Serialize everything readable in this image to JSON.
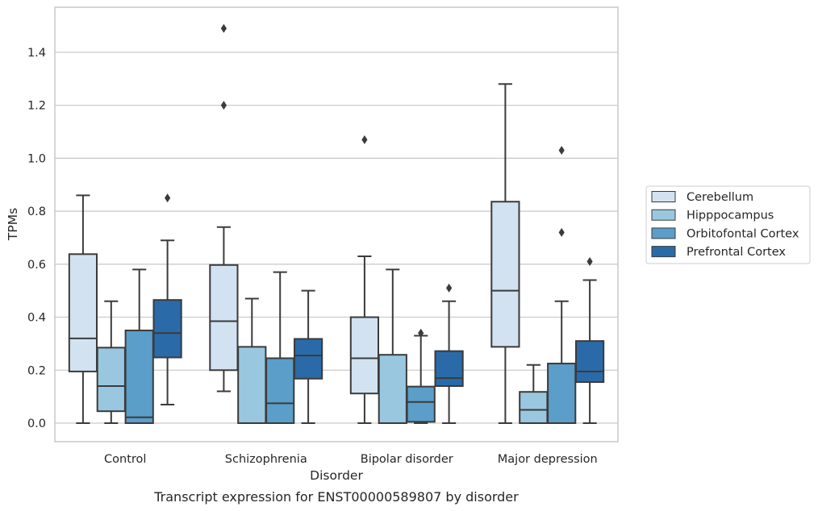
{
  "caption": "Transcript expression for ENST00000589807 by disorder",
  "chart_data": {
    "type": "boxplot",
    "xlabel": "Disorder",
    "ylabel": "TPMs",
    "ylim": [
      -0.07,
      1.57
    ],
    "yticks": [
      "0.0",
      "0.2",
      "0.4",
      "0.6",
      "0.8",
      "1.0",
      "1.2",
      "1.4"
    ],
    "grid": "horizontal",
    "legend_position": "right",
    "categories": [
      "Control",
      "Schizophrenia",
      "Bipolar disorder",
      "Major depression"
    ],
    "series": [
      {
        "name": "Cerebellum",
        "color": "#d2e2f1",
        "boxes": [
          {
            "whislo": 0.0,
            "q1": 0.195,
            "med": 0.32,
            "q3": 0.638,
            "whishi": 0.86,
            "fliers": []
          },
          {
            "whislo": 0.12,
            "q1": 0.2,
            "med": 0.385,
            "q3": 0.597,
            "whishi": 0.74,
            "fliers": [
              1.2,
              1.49
            ]
          },
          {
            "whislo": 0.0,
            "q1": 0.112,
            "med": 0.245,
            "q3": 0.4,
            "whishi": 0.63,
            "fliers": [
              1.07
            ]
          },
          {
            "whislo": 0.0,
            "q1": 0.288,
            "med": 0.5,
            "q3": 0.836,
            "whishi": 1.28,
            "fliers": []
          }
        ]
      },
      {
        "name": "Hipppocampus",
        "color": "#9ac7e0",
        "boxes": [
          {
            "whislo": 0.0,
            "q1": 0.045,
            "med": 0.14,
            "q3": 0.285,
            "whishi": 0.46,
            "fliers": []
          },
          {
            "whislo": 0.0,
            "q1": 0.0,
            "med": 0.0,
            "q3": 0.288,
            "whishi": 0.47,
            "fliers": []
          },
          {
            "whislo": 0.0,
            "q1": 0.0,
            "med": 0.0,
            "q3": 0.258,
            "whishi": 0.58,
            "fliers": []
          },
          {
            "whislo": 0.0,
            "q1": 0.0,
            "med": 0.05,
            "q3": 0.118,
            "whishi": 0.22,
            "fliers": []
          }
        ]
      },
      {
        "name": "Orbitofontal Cortex",
        "color": "#5b9ec9",
        "boxes": [
          {
            "whislo": 0.0,
            "q1": 0.0,
            "med": 0.022,
            "q3": 0.35,
            "whishi": 0.58,
            "fliers": []
          },
          {
            "whislo": 0.0,
            "q1": 0.0,
            "med": 0.075,
            "q3": 0.245,
            "whishi": 0.57,
            "fliers": []
          },
          {
            "whislo": 0.0,
            "q1": 0.005,
            "med": 0.08,
            "q3": 0.138,
            "whishi": 0.33,
            "fliers": [
              0.34
            ]
          },
          {
            "whislo": 0.0,
            "q1": 0.0,
            "med": 0.0,
            "q3": 0.225,
            "whishi": 0.46,
            "fliers": [
              0.72,
              1.03
            ]
          }
        ]
      },
      {
        "name": "Prefrontal Cortex",
        "color": "#2a6aa8",
        "boxes": [
          {
            "whislo": 0.07,
            "q1": 0.248,
            "med": 0.34,
            "q3": 0.465,
            "whishi": 0.69,
            "fliers": [
              0.85
            ]
          },
          {
            "whislo": 0.0,
            "q1": 0.168,
            "med": 0.255,
            "q3": 0.318,
            "whishi": 0.5,
            "fliers": []
          },
          {
            "whislo": 0.0,
            "q1": 0.14,
            "med": 0.17,
            "q3": 0.272,
            "whishi": 0.46,
            "fliers": [
              0.51
            ]
          },
          {
            "whislo": 0.0,
            "q1": 0.155,
            "med": 0.195,
            "q3": 0.31,
            "whishi": 0.54,
            "fliers": [
              0.61
            ]
          }
        ]
      }
    ]
  }
}
